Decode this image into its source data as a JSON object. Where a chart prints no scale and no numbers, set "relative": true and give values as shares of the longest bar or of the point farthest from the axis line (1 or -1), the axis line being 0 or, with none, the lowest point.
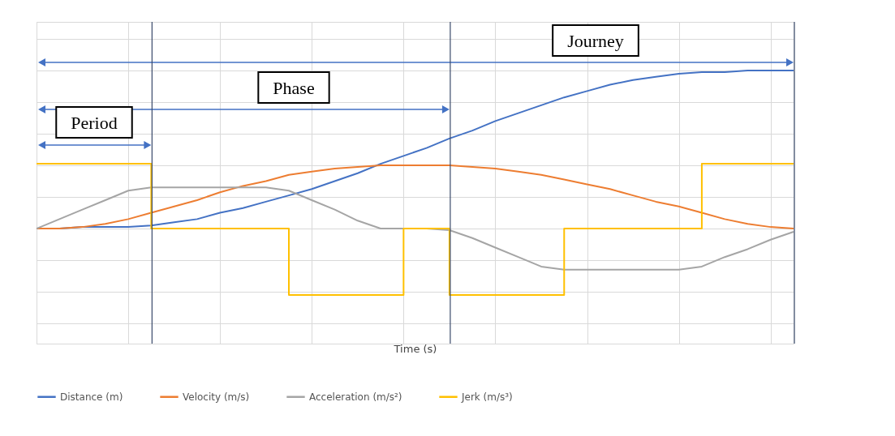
{
  "chart_data": {
    "type": "line",
    "relative": true,
    "xlabel": "Time (s)",
    "legend": "bottom",
    "grid": true,
    "tick_labels": false,
    "categories": [
      null,
      null,
      null,
      null,
      null,
      null,
      null,
      null,
      null,
      null,
      null,
      null,
      null,
      null,
      null,
      null,
      null,
      null,
      null,
      null,
      null,
      null,
      null,
      null,
      null,
      null,
      null,
      null,
      null,
      null,
      null,
      null,
      null,
      null
    ],
    "annotations": [
      "Journey",
      "Phase",
      "Period"
    ],
    "series": [
      {
        "name": "Distance (m)",
        "color": "#4472c4",
        "values": [
          0,
          0,
          0.01,
          0.01,
          0.01,
          0.02,
          0.04,
          0.06,
          0.1,
          0.13,
          0.17,
          0.21,
          0.25,
          0.3,
          0.35,
          0.41,
          0.46,
          0.51,
          0.57,
          0.62,
          0.68,
          0.73,
          0.78,
          0.83,
          0.87,
          0.91,
          0.94,
          0.96,
          0.98,
          0.99,
          0.99,
          1,
          1,
          1
        ]
      },
      {
        "name": "Velocity (m/s)",
        "color": "#ed7d31",
        "values": [
          0,
          0,
          0.01,
          0.03,
          0.06,
          0.1,
          0.14,
          0.18,
          0.23,
          0.27,
          0.3,
          0.34,
          0.36,
          0.38,
          0.39,
          0.4,
          0.4,
          0.4,
          0.4,
          0.39,
          0.38,
          0.36,
          0.34,
          0.31,
          0.28,
          0.25,
          0.21,
          0.17,
          0.14,
          0.1,
          0.06,
          0.03,
          0.01,
          0
        ]
      },
      {
        "name": "Acceleration (m/s²)",
        "color": "#a5a5a5",
        "values": [
          0,
          0.06,
          0.12,
          0.18,
          0.24,
          0.26,
          0.26,
          0.26,
          0.26,
          0.26,
          0.26,
          0.24,
          0.18,
          0.12,
          0.05,
          0,
          0,
          0,
          -0.01,
          -0.06,
          -0.12,
          -0.18,
          -0.24,
          -0.26,
          -0.26,
          -0.26,
          -0.26,
          -0.26,
          -0.26,
          -0.24,
          -0.18,
          -0.13,
          -0.07,
          -0.02
        ]
      },
      {
        "name": "Jerk (m/s³)",
        "type": "step",
        "color": "#ffc000",
        "values": [
          0.41,
          0.41,
          0.41,
          0.41,
          0.41,
          0,
          0,
          0,
          0,
          0,
          0,
          -0.42,
          -0.42,
          -0.42,
          -0.42,
          -0.42,
          0,
          0,
          -0.42,
          -0.42,
          -0.42,
          -0.42,
          -0.42,
          0,
          0,
          0,
          0,
          0,
          0,
          0.41,
          0.41,
          0.41,
          0.41,
          0.41
        ]
      }
    ]
  }
}
